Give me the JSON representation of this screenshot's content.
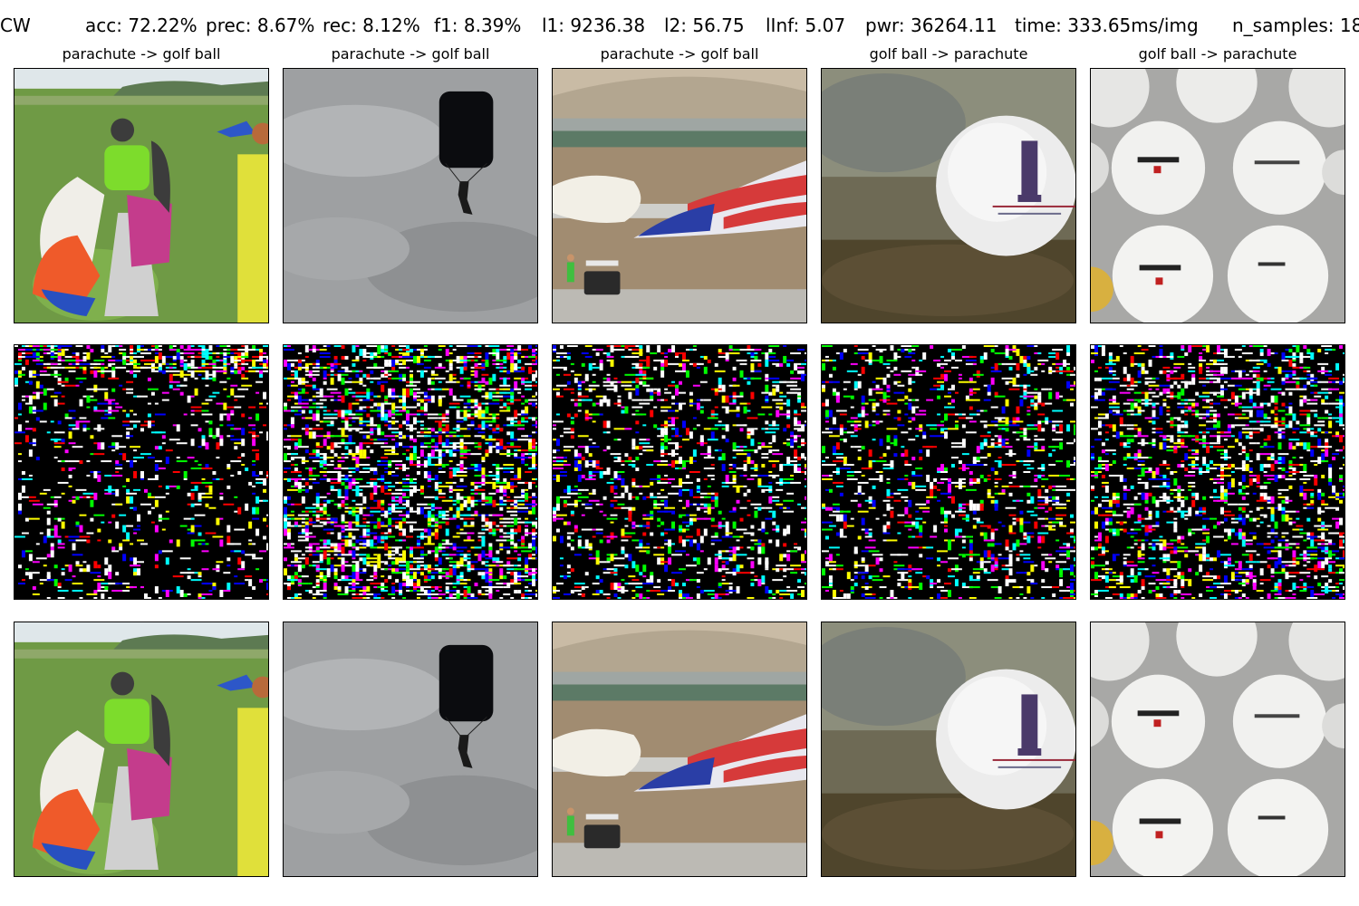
{
  "header": {
    "method": "CW",
    "acc": "acc: 72.22%",
    "prec": "prec: 8.67%",
    "rec": "rec: 8.12%",
    "f1": "f1: 8.39%",
    "l1": "l1: 9236.38",
    "l2": "l2: 56.75",
    "linf": "lInf: 5.07",
    "pwr": "pwr: 36264.11",
    "time": "time: 333.65ms/img",
    "n_samples": "n_samples: 18"
  },
  "columns": [
    {
      "title": "parachute -> golf ball",
      "scene": "parachute-field-icon"
    },
    {
      "title": "parachute -> golf ball",
      "scene": "parachute-sky-icon"
    },
    {
      "title": "parachute -> golf ball",
      "scene": "flag-canopy-airfield-icon"
    },
    {
      "title": "golf ball -> parachute",
      "scene": "golf-ball-closeup-icon"
    },
    {
      "title": "golf ball -> parachute",
      "scene": "golf-balls-pile-icon"
    }
  ],
  "rows": [
    "original",
    "perturbation",
    "adversarial"
  ],
  "colors": {
    "noise_palette": [
      "#ffffff",
      "#ffffff",
      "#ffffff",
      "#ffff00",
      "#00ffff",
      "#ff00ff",
      "#ff0000",
      "#00ff00",
      "#0000ff"
    ]
  }
}
